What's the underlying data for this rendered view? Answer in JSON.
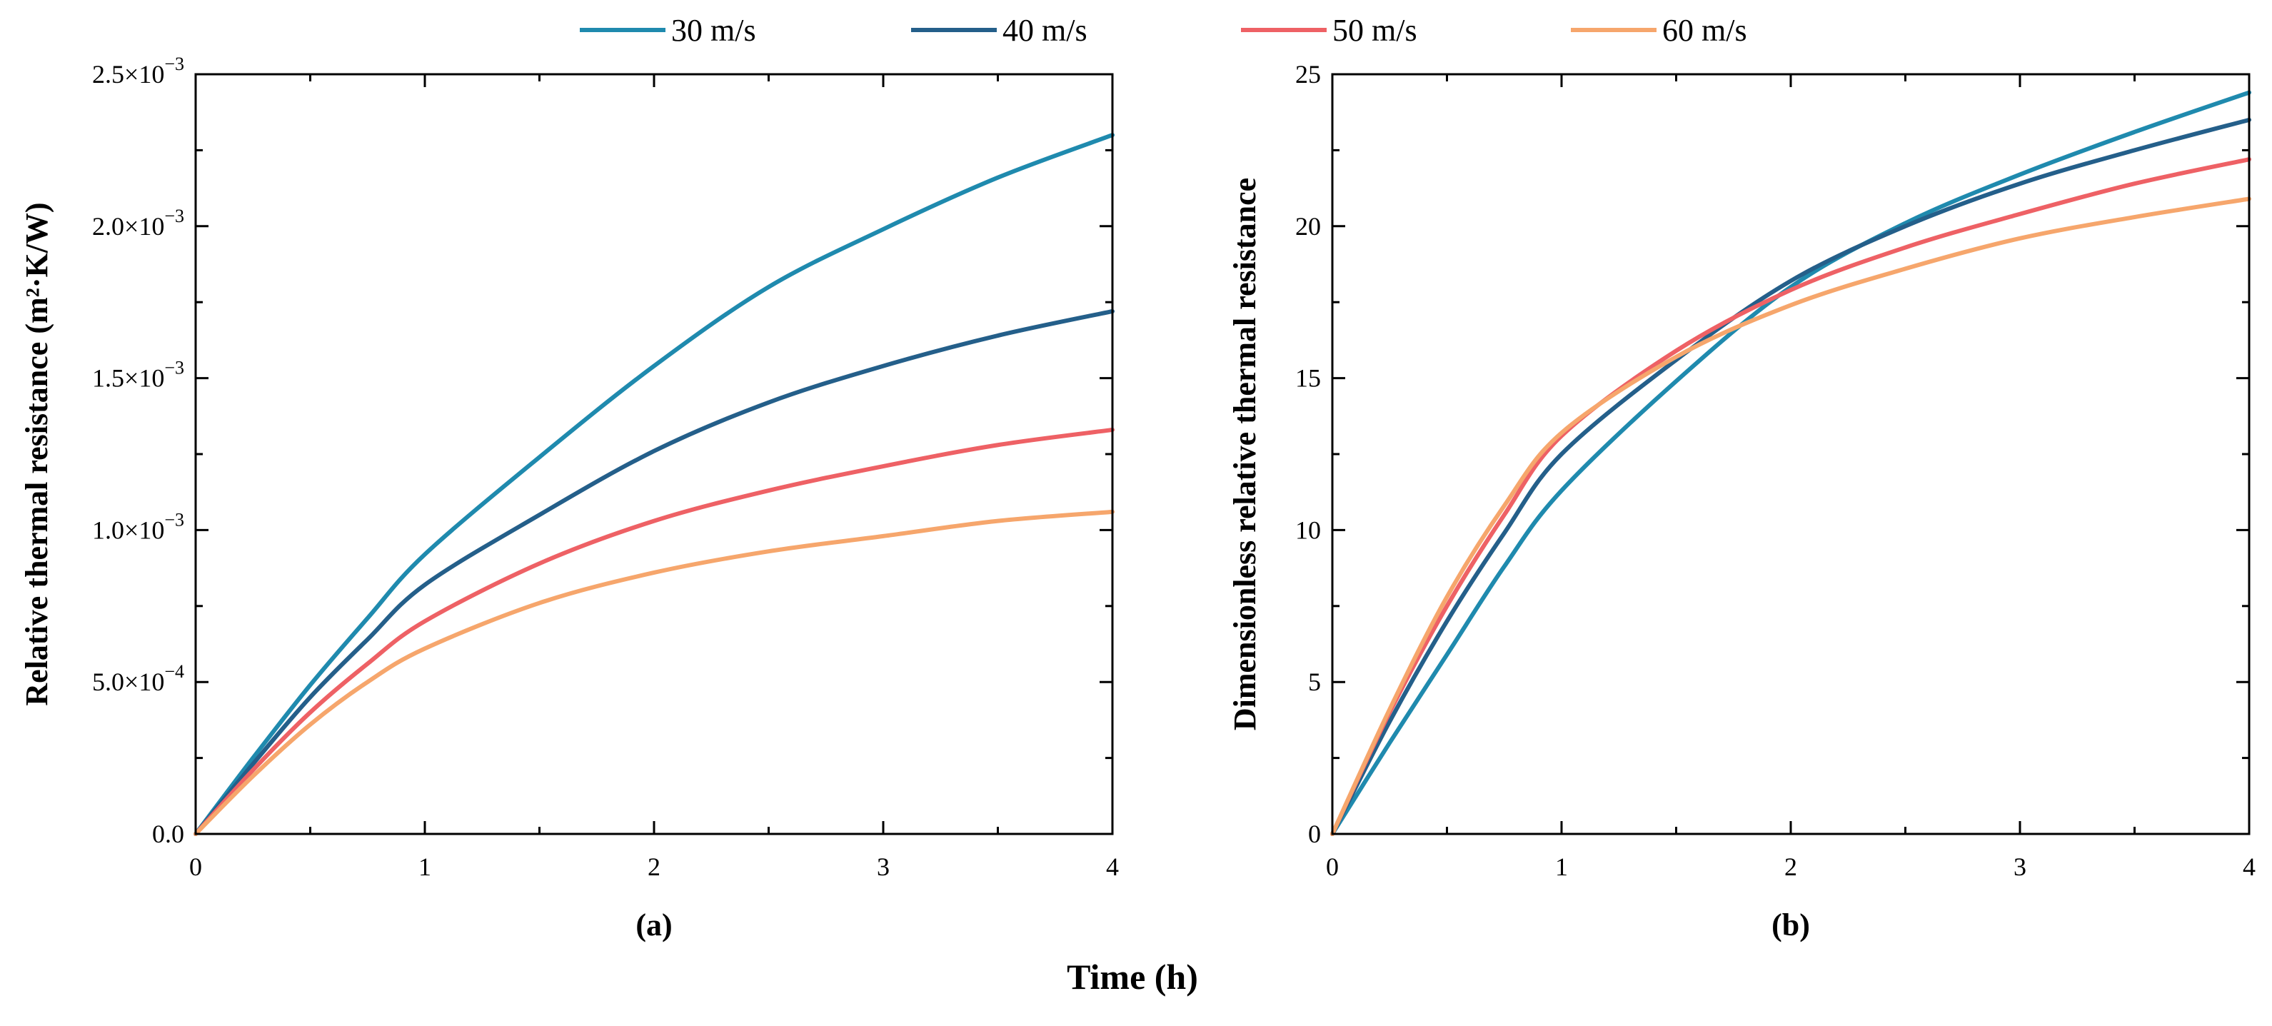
{
  "shared_xlabel": "Time (h)",
  "legend": [
    {
      "name": "30 m/s",
      "color": "#1F8AAE"
    },
    {
      "name": "40 m/s",
      "color": "#245F8A"
    },
    {
      "name": "50 m/s",
      "color": "#EE6165"
    },
    {
      "name": "60 m/s",
      "color": "#F6A66C"
    }
  ],
  "chart_data": [
    {
      "type": "line",
      "panel_label": "(a)",
      "title": "",
      "xlabel": "",
      "ylabel": "Relative thermal resistance (m²·K/W)",
      "xlim": [
        0,
        4
      ],
      "ylim": [
        0,
        0.0025
      ],
      "x_ticks": [
        0,
        1,
        2,
        3,
        4
      ],
      "x_tick_labels": [
        "0",
        "1",
        "2",
        "3",
        "4"
      ],
      "y_ticks": [
        0,
        0.0005,
        0.001,
        0.0015,
        0.002,
        0.0025
      ],
      "y_tick_labels": [
        {
          "mantissa": "0.0",
          "exponent": ""
        },
        {
          "mantissa": "5.0×10",
          "exponent": "−4"
        },
        {
          "mantissa": "1.0×10",
          "exponent": "−3"
        },
        {
          "mantissa": "1.5×10",
          "exponent": "−3"
        },
        {
          "mantissa": "2.0×10",
          "exponent": "−3"
        },
        {
          "mantissa": "2.5×10",
          "exponent": "−3"
        }
      ],
      "x": [
        0,
        0.25,
        0.5,
        0.75,
        1,
        1.5,
        2,
        2.5,
        3,
        3.5,
        4
      ],
      "series": [
        {
          "name": "30 m/s",
          "color": "#1F8AAE",
          "values": [
            0,
            0.00025,
            0.00049,
            0.00071,
            0.00092,
            0.00124,
            0.00154,
            0.0018,
            0.00199,
            0.00216,
            0.0023
          ]
        },
        {
          "name": "40 m/s",
          "color": "#245F8A",
          "values": [
            0,
            0.00023,
            0.00045,
            0.00064,
            0.00082,
            0.00105,
            0.00126,
            0.00142,
            0.00154,
            0.00164,
            0.00172
          ]
        },
        {
          "name": "50 m/s",
          "color": "#EE6165",
          "values": [
            0,
            0.00021,
            0.0004,
            0.00056,
            0.0007,
            0.00089,
            0.00103,
            0.00113,
            0.00121,
            0.00128,
            0.00133
          ]
        },
        {
          "name": "60 m/s",
          "color": "#F6A66C",
          "values": [
            0,
            0.00019,
            0.00036,
            0.0005,
            0.00061,
            0.00076,
            0.00086,
            0.00093,
            0.00098,
            0.00103,
            0.00106
          ]
        }
      ]
    },
    {
      "type": "line",
      "panel_label": "(b)",
      "title": "",
      "xlabel": "",
      "ylabel": "Dimensionless relative thermal resistance",
      "xlim": [
        0,
        4
      ],
      "ylim": [
        0,
        25
      ],
      "x_ticks": [
        0,
        1,
        2,
        3,
        4
      ],
      "x_tick_labels": [
        "0",
        "1",
        "2",
        "3",
        "4"
      ],
      "y_ticks": [
        0,
        5,
        10,
        15,
        20,
        25
      ],
      "y_tick_labels": [
        {
          "mantissa": "0",
          "exponent": ""
        },
        {
          "mantissa": "5",
          "exponent": ""
        },
        {
          "mantissa": "10",
          "exponent": ""
        },
        {
          "mantissa": "15",
          "exponent": ""
        },
        {
          "mantissa": "20",
          "exponent": ""
        },
        {
          "mantissa": "25",
          "exponent": ""
        }
      ],
      "x": [
        0,
        0.25,
        0.5,
        0.75,
        1,
        1.5,
        2,
        2.5,
        3,
        3.5,
        4
      ],
      "series": [
        {
          "name": "30 m/s",
          "color": "#1F8AAE",
          "values": [
            0,
            3.0,
            5.9,
            8.8,
            11.3,
            14.9,
            18.0,
            20.1,
            21.7,
            23.1,
            24.4
          ]
        },
        {
          "name": "40 m/s",
          "color": "#245F8A",
          "values": [
            0,
            3.7,
            7.0,
            9.9,
            12.5,
            15.6,
            18.2,
            20.0,
            21.4,
            22.5,
            23.5
          ]
        },
        {
          "name": "50 m/s",
          "color": "#EE6165",
          "values": [
            0,
            4.0,
            7.5,
            10.5,
            13.1,
            15.9,
            17.9,
            19.3,
            20.4,
            21.4,
            22.2
          ]
        },
        {
          "name": "60 m/s",
          "color": "#F6A66C",
          "values": [
            0,
            4.1,
            7.8,
            10.8,
            13.2,
            15.7,
            17.4,
            18.6,
            19.6,
            20.3,
            20.9
          ]
        }
      ]
    }
  ]
}
